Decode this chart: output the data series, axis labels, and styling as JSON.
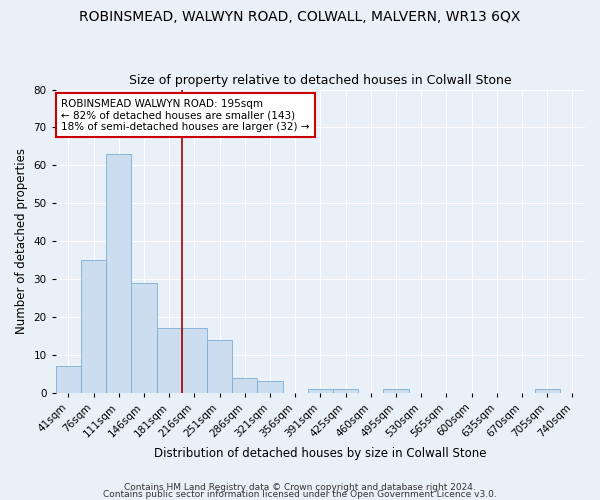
{
  "title": "ROBINSMEAD, WALWYN ROAD, COLWALL, MALVERN, WR13 6QX",
  "subtitle": "Size of property relative to detached houses in Colwall Stone",
  "xlabel": "Distribution of detached houses by size in Colwall Stone",
  "ylabel": "Number of detached properties",
  "bin_labels": [
    "41sqm",
    "76sqm",
    "111sqm",
    "146sqm",
    "181sqm",
    "216sqm",
    "251sqm",
    "286sqm",
    "321sqm",
    "356sqm",
    "391sqm",
    "425sqm",
    "460sqm",
    "495sqm",
    "530sqm",
    "565sqm",
    "600sqm",
    "635sqm",
    "670sqm",
    "705sqm",
    "740sqm"
  ],
  "bar_heights": [
    7,
    35,
    63,
    29,
    17,
    17,
    14,
    4,
    3,
    0,
    1,
    1,
    0,
    1,
    0,
    0,
    0,
    0,
    0,
    1,
    0
  ],
  "bar_color": "#ccddef",
  "bar_edge_color": "#7aafd4",
  "annotation_text": "ROBINSMEAD WALWYN ROAD: 195sqm\n← 82% of detached houses are smaller (143)\n18% of semi-detached houses are larger (32) →",
  "annotation_box_color": "white",
  "annotation_box_edge": "#cc0000",
  "ylim": [
    0,
    80
  ],
  "yticks": [
    0,
    10,
    20,
    30,
    40,
    50,
    60,
    70,
    80
  ],
  "footer_line1": "Contains HM Land Registry data © Crown copyright and database right 2024.",
  "footer_line2": "Contains public sector information licensed under the Open Government Licence v3.0.",
  "bg_color": "#eaf0f8",
  "grid_color": "white",
  "title_fontsize": 10,
  "subtitle_fontsize": 9,
  "xlabel_fontsize": 8.5,
  "ylabel_fontsize": 8.5,
  "tick_fontsize": 7.5,
  "footer_fontsize": 6.5,
  "red_line_index": 5
}
